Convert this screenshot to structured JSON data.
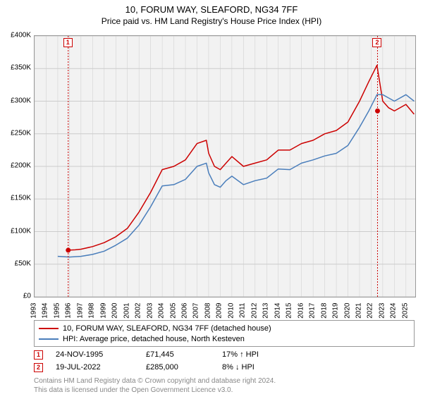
{
  "title": "10, FORUM WAY, SLEAFORD, NG34 7FF",
  "subtitle": "Price paid vs. HM Land Registry's House Price Index (HPI)",
  "chart": {
    "type": "line",
    "background_color": "#f2f2f2",
    "border_color": "#999999",
    "grid_color": "#cccccc",
    "ylabel_prefix": "£",
    "ylim": [
      0,
      400000
    ],
    "ytick_step": 50000,
    "ytick_labels": [
      "£0",
      "£50K",
      "£100K",
      "£150K",
      "£200K",
      "£250K",
      "£300K",
      "£350K",
      "£400K"
    ],
    "xlim": [
      1993,
      2025.8
    ],
    "xtick_labels": [
      "1993",
      "1994",
      "1995",
      "1996",
      "1997",
      "1998",
      "1999",
      "2000",
      "2001",
      "2002",
      "2003",
      "2004",
      "2005",
      "2006",
      "2007",
      "2008",
      "2009",
      "2010",
      "2011",
      "2012",
      "2013",
      "2014",
      "2015",
      "2016",
      "2017",
      "2018",
      "2019",
      "2020",
      "2021",
      "2022",
      "2023",
      "2024",
      "2025"
    ],
    "series": [
      {
        "name": "10, FORUM WAY, SLEAFORD, NG34 7FF (detached house)",
        "color": "#cc0000",
        "line_width": 1.5,
        "x": [
          1995.9,
          1996.5,
          1997,
          1998,
          1999,
          2000,
          2001,
          2002,
          2003,
          2004,
          2005,
          2006,
          2007,
          2007.8,
          2008,
          2008.5,
          2009,
          2009.5,
          2010,
          2011,
          2012,
          2013,
          2014,
          2015,
          2016,
          2017,
          2018,
          2019,
          2020,
          2021,
          2021.8,
          2022.5,
          2023,
          2023.5,
          2024,
          2025,
          2025.7
        ],
        "y": [
          71445,
          72000,
          73000,
          77000,
          83000,
          92000,
          105000,
          130000,
          160000,
          195000,
          200000,
          210000,
          235000,
          240000,
          220000,
          200000,
          195000,
          205000,
          215000,
          200000,
          205000,
          210000,
          225000,
          225000,
          235000,
          240000,
          250000,
          255000,
          268000,
          300000,
          330000,
          355000,
          300000,
          290000,
          285000,
          295000,
          280000
        ]
      },
      {
        "name": "HPI: Average price, detached house, North Kesteven",
        "color": "#4a7ebb",
        "line_width": 1.5,
        "x": [
          1995,
          1996,
          1997,
          1998,
          1999,
          2000,
          2001,
          2002,
          2003,
          2004,
          2005,
          2006,
          2007,
          2007.8,
          2008,
          2008.5,
          2009,
          2009.5,
          2010,
          2011,
          2012,
          2013,
          2014,
          2015,
          2016,
          2017,
          2018,
          2019,
          2020,
          2021,
          2021.8,
          2022.5,
          2023,
          2023.5,
          2024,
          2025,
          2025.7
        ],
        "y": [
          62000,
          61000,
          62000,
          65000,
          70000,
          79000,
          90000,
          110000,
          138000,
          170000,
          172000,
          180000,
          200000,
          205000,
          190000,
          172000,
          168000,
          178000,
          185000,
          172000,
          178000,
          182000,
          196000,
          195000,
          205000,
          210000,
          216000,
          220000,
          232000,
          260000,
          285000,
          310000,
          310000,
          305000,
          300000,
          310000,
          300000
        ]
      }
    ],
    "markers": [
      {
        "id": "1",
        "x": 1995.9,
        "y": 71445,
        "dot_color": "#cc0000"
      },
      {
        "id": "2",
        "x": 2022.55,
        "y": 285000,
        "dot_color": "#cc0000"
      }
    ]
  },
  "legend": {
    "items": [
      {
        "color": "#cc0000",
        "label": "10, FORUM WAY, SLEAFORD, NG34 7FF (detached house)"
      },
      {
        "color": "#4a7ebb",
        "label": "HPI: Average price, detached house, North Kesteven"
      }
    ]
  },
  "events": [
    {
      "id": "1",
      "date": "24-NOV-1995",
      "price": "£71,445",
      "hpi": "17% ↑ HPI"
    },
    {
      "id": "2",
      "date": "19-JUL-2022",
      "price": "£285,000",
      "hpi": "8% ↓ HPI"
    }
  ],
  "footer": {
    "line1": "Contains HM Land Registry data © Crown copyright and database right 2024.",
    "line2": "This data is licensed under the Open Government Licence v3.0."
  },
  "fonts": {
    "title_size": 13,
    "subtitle_size": 12,
    "tick_size": 10,
    "legend_size": 11,
    "footer_size": 10
  }
}
